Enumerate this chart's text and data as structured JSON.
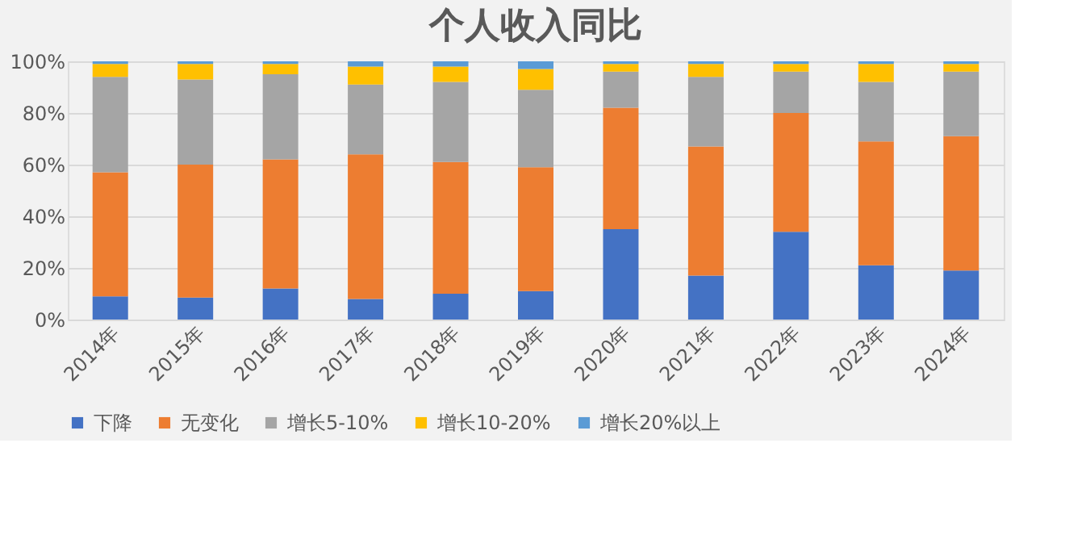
{
  "chart_data": {
    "type": "bar",
    "title": "个人收入同比",
    "stacked": true,
    "categories": [
      "2014年",
      "2015年",
      "2016年",
      "2017年",
      "2018年",
      "2019年",
      "2020年",
      "2021年",
      "2022年",
      "2023年",
      "2024年"
    ],
    "series": [
      {
        "name": "下降",
        "color": "#4472c4",
        "values": [
          9,
          8.5,
          12,
          8,
          10,
          11,
          35,
          17,
          34,
          21,
          19
        ]
      },
      {
        "name": "无变化",
        "color": "#ed7d31",
        "values": [
          48,
          51.5,
          50,
          56,
          51,
          48,
          47,
          50,
          46,
          48,
          52
        ]
      },
      {
        "name": "增长5-10%",
        "color": "#a5a5a5",
        "values": [
          37,
          33,
          33,
          27,
          31,
          30,
          14,
          27,
          16,
          23,
          25
        ]
      },
      {
        "name": "增长10-20%",
        "color": "#ffc000",
        "values": [
          5,
          6,
          4,
          7,
          6,
          8,
          3,
          5,
          3,
          7,
          3
        ]
      },
      {
        "name": "增长20%以上",
        "color": "#5b9bd5",
        "values": [
          1,
          1,
          1,
          2,
          2,
          3,
          1,
          1,
          1,
          1,
          1
        ]
      }
    ],
    "ylim": [
      0,
      100
    ],
    "yticks": [
      {
        "value": 0,
        "label": "0%"
      },
      {
        "value": 20,
        "label": "20%"
      },
      {
        "value": 40,
        "label": "40%"
      },
      {
        "value": 60,
        "label": "60%"
      },
      {
        "value": 80,
        "label": "80%"
      },
      {
        "value": 100,
        "label": "100%"
      }
    ],
    "grid": "y",
    "legend": "bottom"
  }
}
